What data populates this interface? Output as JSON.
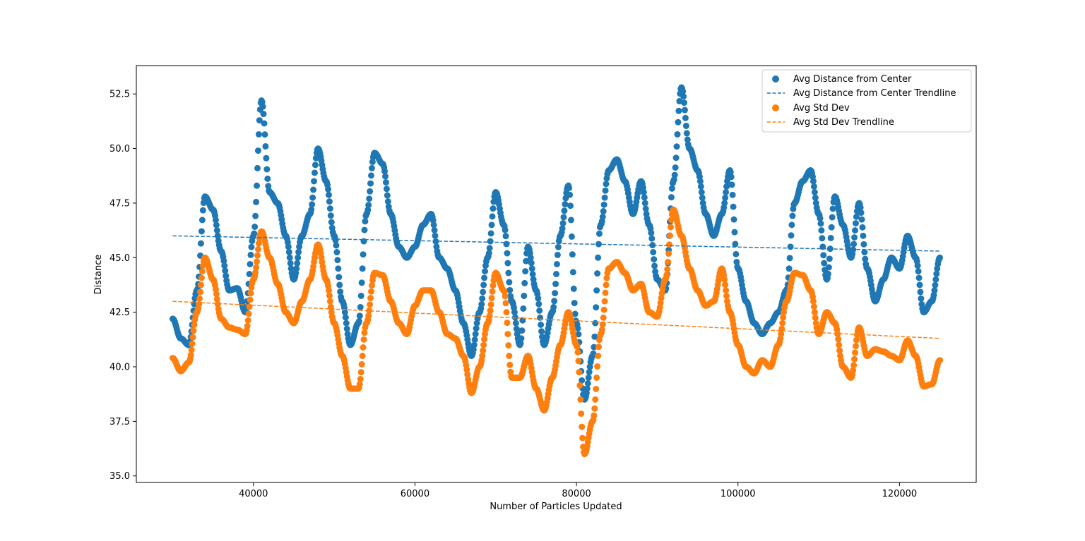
{
  "chart_data": {
    "type": "scatter",
    "title": "",
    "xlabel": "Number of Particles Updated",
    "ylabel": "Distance",
    "xlim": [
      25500,
      129500
    ],
    "ylim": [
      34.7,
      53.8
    ],
    "xticks": [
      40000,
      60000,
      80000,
      100000,
      120000
    ],
    "xtick_labels": [
      "40000",
      "60000",
      "80000",
      "100000",
      "120000"
    ],
    "yticks": [
      35.0,
      37.5,
      40.0,
      42.5,
      45.0,
      47.5,
      50.0,
      52.5
    ],
    "ytick_labels": [
      "35.0",
      "37.5",
      "40.0",
      "42.5",
      "45.0",
      "47.5",
      "50.0",
      "52.5"
    ],
    "grid": false,
    "legend_position": "top-right",
    "series": [
      {
        "name": "Avg Distance from Center",
        "kind": "scatter",
        "color": "#1f77b4",
        "x": [
          30000,
          31000,
          32000,
          33000,
          34000,
          35000,
          36000,
          37000,
          38000,
          39000,
          40000,
          41000,
          42000,
          43000,
          44000,
          45000,
          46000,
          47000,
          48000,
          49000,
          50000,
          51000,
          52000,
          53000,
          54000,
          55000,
          56000,
          57000,
          58000,
          59000,
          60000,
          61000,
          62000,
          63000,
          64000,
          65000,
          66000,
          67000,
          68000,
          69000,
          70000,
          71000,
          72000,
          73000,
          74000,
          75000,
          76000,
          77000,
          78000,
          79000,
          80000,
          81000,
          82000,
          83000,
          84000,
          85000,
          86000,
          87000,
          88000,
          89000,
          90000,
          91000,
          92000,
          93000,
          94000,
          95000,
          96000,
          97000,
          98000,
          99000,
          100000,
          101000,
          102000,
          103000,
          104000,
          105000,
          106000,
          107000,
          108000,
          109000,
          110000,
          111000,
          112000,
          113000,
          114000,
          115000,
          116000,
          117000,
          118000,
          119000,
          120000,
          121000,
          122000,
          123000,
          124000,
          125000
        ],
        "y": [
          42.2,
          41.3,
          41.0,
          43.5,
          47.8,
          47.2,
          45.3,
          43.5,
          43.6,
          42.5,
          46.0,
          52.2,
          48.0,
          47.5,
          46.0,
          44.0,
          46.0,
          47.0,
          50.0,
          48.5,
          46.0,
          43.0,
          41.0,
          42.0,
          47.0,
          49.8,
          49.3,
          47.0,
          45.5,
          45.0,
          45.5,
          46.5,
          47.0,
          45.0,
          44.5,
          43.5,
          42.0,
          40.5,
          42.5,
          45.0,
          48.0,
          46.5,
          43.0,
          41.0,
          45.5,
          43.5,
          41.0,
          42.5,
          46.0,
          48.3,
          42.0,
          38.5,
          40.5,
          46.5,
          49.0,
          49.5,
          48.5,
          47.0,
          48.5,
          46.5,
          44.0,
          43.5,
          48.5,
          52.8,
          50.0,
          49.0,
          47.0,
          46.0,
          47.0,
          49.0,
          44.5,
          43.0,
          42.0,
          41.5,
          42.0,
          42.5,
          43.5,
          47.5,
          48.5,
          49.0,
          47.0,
          44.0,
          47.8,
          46.5,
          45.0,
          47.5,
          44.5,
          43.0,
          44.0,
          45.0,
          44.5,
          46.0,
          45.0,
          42.5,
          43.0,
          45.0
        ]
      },
      {
        "name": "Avg Distance from Center Trendline",
        "kind": "line",
        "dashed": true,
        "color": "#1f77b4",
        "x": [
          30000,
          125000
        ],
        "y": [
          46.0,
          45.3
        ]
      },
      {
        "name": "Avg Std Dev",
        "kind": "scatter",
        "color": "#ff7f0e",
        "x": [
          30000,
          31000,
          32000,
          33000,
          34000,
          35000,
          36000,
          37000,
          38000,
          39000,
          40000,
          41000,
          42000,
          43000,
          44000,
          45000,
          46000,
          47000,
          48000,
          49000,
          50000,
          51000,
          52000,
          53000,
          54000,
          55000,
          56000,
          57000,
          58000,
          59000,
          60000,
          61000,
          62000,
          63000,
          64000,
          65000,
          66000,
          67000,
          68000,
          69000,
          70000,
          71000,
          72000,
          73000,
          74000,
          75000,
          76000,
          77000,
          78000,
          79000,
          80000,
          81000,
          82000,
          83000,
          84000,
          85000,
          86000,
          87000,
          88000,
          89000,
          90000,
          91000,
          92000,
          93000,
          94000,
          95000,
          96000,
          97000,
          98000,
          99000,
          100000,
          101000,
          102000,
          103000,
          104000,
          105000,
          106000,
          107000,
          108000,
          109000,
          110000,
          111000,
          112000,
          113000,
          114000,
          115000,
          116000,
          117000,
          118000,
          119000,
          120000,
          121000,
          122000,
          123000,
          124000,
          125000
        ],
        "y": [
          40.4,
          39.8,
          40.2,
          42.5,
          45.0,
          44.0,
          42.2,
          41.8,
          41.7,
          41.5,
          44.0,
          46.2,
          45.0,
          43.8,
          42.5,
          42.0,
          43.0,
          44.0,
          45.6,
          44.0,
          42.0,
          40.5,
          39.0,
          39.0,
          42.0,
          44.3,
          44.2,
          43.0,
          42.0,
          41.5,
          42.8,
          43.5,
          43.5,
          42.5,
          41.5,
          41.3,
          40.5,
          38.8,
          40.0,
          42.0,
          44.3,
          43.5,
          39.5,
          39.5,
          40.5,
          39.0,
          38.0,
          39.5,
          41.0,
          42.5,
          41.0,
          36.0,
          37.5,
          41.5,
          44.5,
          44.8,
          44.3,
          43.5,
          43.8,
          42.5,
          42.3,
          44.0,
          47.2,
          46.0,
          44.5,
          43.5,
          42.8,
          43.0,
          44.5,
          42.5,
          41.0,
          40.0,
          39.7,
          40.3,
          40.0,
          41.0,
          43.0,
          44.3,
          44.2,
          43.5,
          41.5,
          42.5,
          42.0,
          40.0,
          39.5,
          41.8,
          40.5,
          40.8,
          40.7,
          40.5,
          40.3,
          41.2,
          40.5,
          39.1,
          39.2,
          40.3
        ]
      },
      {
        "name": "Avg Std Dev Trendline",
        "kind": "line",
        "dashed": true,
        "color": "#ff7f0e",
        "x": [
          30000,
          125000
        ],
        "y": [
          43.0,
          41.3
        ]
      }
    ]
  }
}
